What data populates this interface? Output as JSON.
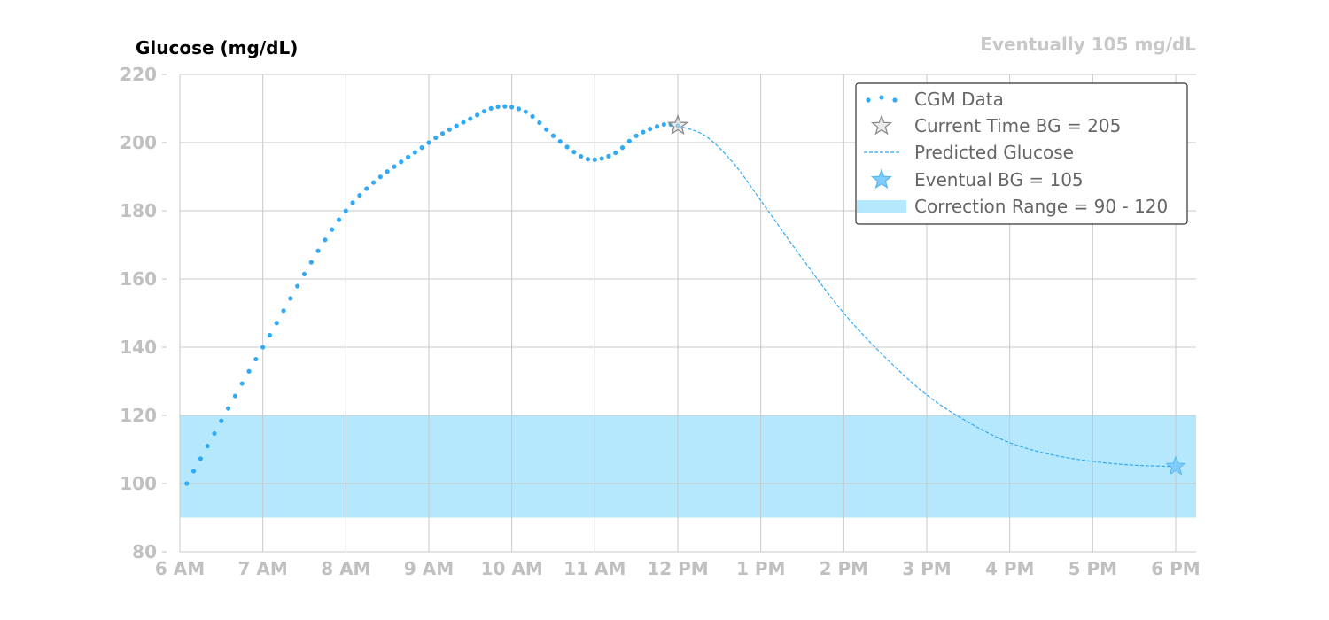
{
  "chart_data": {
    "type": "line",
    "title": "Glucose (mg/dL)",
    "subtitle": "Eventually 105 mg/dL",
    "xlabel": "",
    "ylabel": "",
    "x_unit": "hours since midnight",
    "xlim": [
      6,
      18.25
    ],
    "ylim": [
      80,
      220
    ],
    "x_ticks": [
      6,
      7,
      8,
      9,
      10,
      11,
      12,
      13,
      14,
      15,
      16,
      17,
      18
    ],
    "x_tick_labels": [
      "6 AM",
      "7 AM",
      "8 AM",
      "9 AM",
      "10 AM",
      "11 AM",
      "12 PM",
      "1 PM",
      "2 PM",
      "3 PM",
      "4 PM",
      "5 PM",
      "6 PM"
    ],
    "y_ticks": [
      80,
      100,
      120,
      140,
      160,
      180,
      200,
      220
    ],
    "y_tick_labels": [
      "80",
      "100",
      "120",
      "140",
      "160",
      "180",
      "200",
      "220"
    ],
    "grid": true,
    "legend_position": "top-right",
    "correction_range": [
      90,
      120
    ],
    "series": [
      {
        "name": "CGM Data",
        "style": "dotted-markers",
        "color": "#31aaf5",
        "x": [
          6.083,
          7,
          8,
          9,
          9.5,
          9.83,
          10.17,
          10.5,
          10.83,
          11,
          11.25,
          11.5,
          11.83,
          12
        ],
        "y": [
          100,
          140,
          180,
          200,
          207,
          210.5,
          209,
          202,
          196,
          195,
          197,
          202,
          205.3,
          205
        ]
      },
      {
        "name": "Predicted Glucose",
        "style": "dashed",
        "color": "#31aaf5",
        "x": [
          12,
          12.33,
          12.67,
          13,
          13.5,
          14,
          14.5,
          15,
          15.5,
          16,
          16.5,
          17,
          17.5,
          18
        ],
        "y": [
          205,
          202,
          194,
          183,
          166,
          150,
          137,
          126,
          118,
          112,
          108.5,
          106.5,
          105.4,
          105
        ]
      }
    ],
    "markers": [
      {
        "name": "Current Time BG",
        "x": 12,
        "y": 205,
        "color": "#888888"
      },
      {
        "name": "Eventual BG",
        "x": 18,
        "y": 105,
        "color": "#31aaf5"
      }
    ],
    "legend": [
      {
        "label": "CGM Data",
        "kind": "dots",
        "color": "#31aaf5"
      },
      {
        "label": "Current Time BG =  205",
        "kind": "star",
        "color": "#888888"
      },
      {
        "label": "Predicted Glucose",
        "kind": "dash",
        "color": "#31aaf5"
      },
      {
        "label": "Eventual BG = 105",
        "kind": "star",
        "color": "#31aaf5"
      },
      {
        "label": "Correction Range = 90 - 120",
        "kind": "band",
        "color": "#b5e8fd"
      }
    ],
    "colors": {
      "band": "#b5e8fd",
      "cgm": "#31aaf5",
      "grid": "#c8c8c8",
      "tick": "#c0c0c0"
    }
  }
}
